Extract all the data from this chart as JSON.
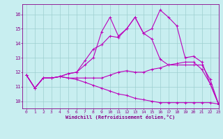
{
  "title": "",
  "xlabel": "Windchill (Refroidissement éolien,°C)",
  "xlim": [
    -0.5,
    23
  ],
  "ylim": [
    9.5,
    16.7
  ],
  "yticks": [
    10,
    11,
    12,
    13,
    14,
    15,
    16
  ],
  "xticks": [
    0,
    1,
    2,
    3,
    4,
    5,
    6,
    7,
    8,
    9,
    10,
    11,
    12,
    13,
    14,
    15,
    16,
    17,
    18,
    19,
    20,
    21,
    22,
    23
  ],
  "bg_color": "#c8eef0",
  "line_color": "#bb00bb",
  "grid_color": "#9dcfcf",
  "series": [
    [
      11.8,
      10.9,
      11.6,
      11.6,
      11.7,
      11.6,
      11.6,
      11.6,
      11.6,
      11.6,
      11.8,
      12.0,
      12.1,
      12.0,
      12.0,
      12.2,
      12.3,
      12.5,
      12.6,
      12.7,
      12.7,
      12.2,
      11.2,
      9.8
    ],
    [
      11.8,
      10.9,
      11.6,
      11.6,
      11.7,
      11.9,
      12.0,
      12.8,
      13.6,
      13.9,
      14.5,
      14.4,
      15.0,
      15.8,
      14.7,
      15.0,
      16.3,
      15.8,
      15.2,
      13.0,
      13.1,
      12.7,
      11.2,
      9.8
    ],
    [
      11.8,
      10.9,
      11.6,
      11.6,
      11.7,
      11.9,
      12.0,
      12.5,
      13.0,
      14.8,
      15.8,
      14.5,
      15.0,
      15.8,
      14.7,
      14.3,
      12.9,
      12.5,
      12.5,
      12.5,
      12.5,
      12.5,
      11.5,
      9.8
    ],
    [
      11.8,
      10.9,
      11.6,
      11.6,
      11.7,
      11.6,
      11.5,
      11.3,
      11.1,
      10.9,
      10.7,
      10.5,
      10.4,
      10.2,
      10.1,
      10.0,
      9.9,
      9.9,
      9.9,
      9.9,
      9.9,
      9.9,
      9.9,
      9.8
    ]
  ]
}
